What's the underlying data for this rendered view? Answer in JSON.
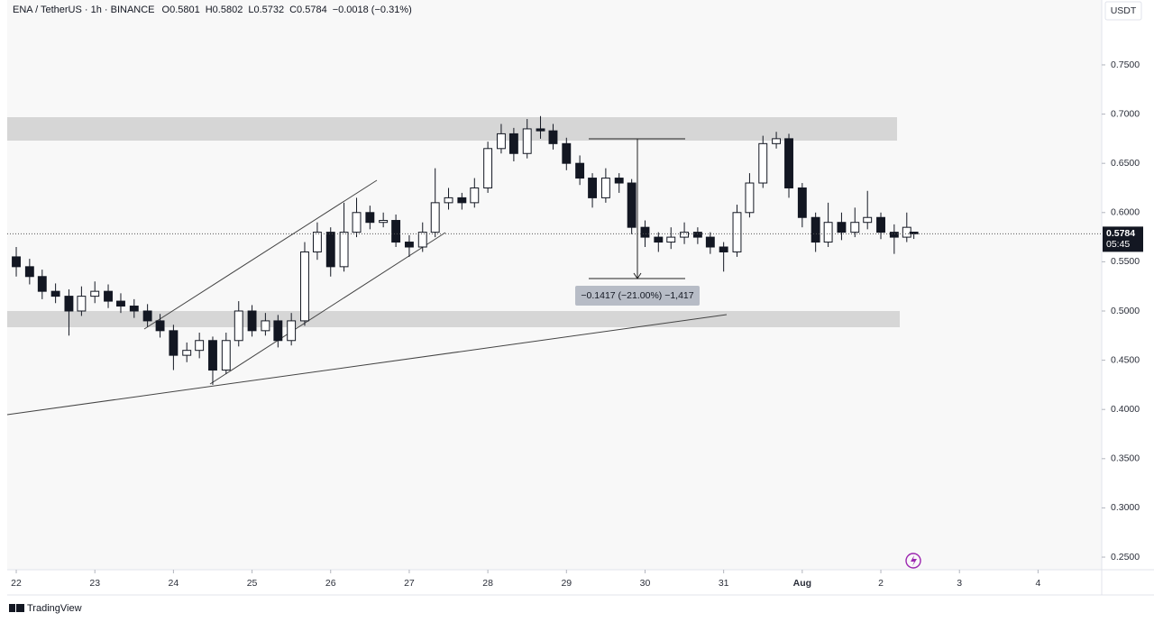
{
  "chart_data": {
    "type": "candlestick",
    "title": "ENA / TetherUS · 1h · BINANCE",
    "legend_values": [
      "O0.5801",
      "H0.5802",
      "L0.5732",
      "C0.5784",
      "−0.0018 (−0.31%)"
    ],
    "y_axis_label": "USDT",
    "x": [
      22.0,
      22.17,
      22.33,
      22.5,
      22.67,
      22.83,
      23.0,
      23.17,
      23.33,
      23.5,
      23.67,
      23.83,
      24.0,
      24.17,
      24.33,
      24.5,
      24.67,
      24.83,
      25.0,
      25.17,
      25.33,
      25.5,
      25.67,
      25.83,
      26.0,
      26.17,
      26.33,
      26.5,
      26.67,
      26.83,
      27.0,
      27.17,
      27.33,
      27.5,
      27.67,
      27.83,
      28.0,
      28.17,
      28.33,
      28.5,
      28.67,
      28.83,
      29.0,
      29.17,
      29.33,
      29.5,
      29.67,
      29.83,
      30.0,
      30.17,
      30.33,
      30.5,
      30.67,
      30.83,
      31.0,
      31.17,
      31.33,
      31.5,
      31.67,
      31.83,
      32.0,
      32.17,
      32.33,
      32.5,
      32.67,
      32.83,
      33.0,
      33.17,
      33.33,
      33.42
    ],
    "open": [
      0.555,
      0.545,
      0.535,
      0.52,
      0.515,
      0.5,
      0.515,
      0.52,
      0.51,
      0.505,
      0.5,
      0.49,
      0.48,
      0.455,
      0.46,
      0.47,
      0.44,
      0.47,
      0.5,
      0.48,
      0.49,
      0.47,
      0.49,
      0.56,
      0.58,
      0.545,
      0.58,
      0.6,
      0.59,
      0.592,
      0.57,
      0.565,
      0.58,
      0.61,
      0.615,
      0.61,
      0.625,
      0.665,
      0.68,
      0.66,
      0.685,
      0.683,
      0.67,
      0.65,
      0.635,
      0.615,
      0.635,
      0.63,
      0.585,
      0.575,
      0.57,
      0.575,
      0.58,
      0.575,
      0.565,
      0.56,
      0.6,
      0.63,
      0.67,
      0.675,
      0.625,
      0.595,
      0.57,
      0.59,
      0.58,
      0.59,
      0.595,
      0.58,
      0.575,
      0.5801
    ],
    "high": [
      0.565,
      0.553,
      0.542,
      0.528,
      0.522,
      0.525,
      0.53,
      0.527,
      0.518,
      0.512,
      0.507,
      0.497,
      0.486,
      0.468,
      0.478,
      0.474,
      0.478,
      0.51,
      0.506,
      0.498,
      0.496,
      0.498,
      0.57,
      0.59,
      0.585,
      0.61,
      0.615,
      0.607,
      0.6,
      0.598,
      0.577,
      0.59,
      0.645,
      0.625,
      0.62,
      0.635,
      0.672,
      0.69,
      0.686,
      0.695,
      0.698,
      0.69,
      0.676,
      0.658,
      0.64,
      0.645,
      0.64,
      0.634,
      0.592,
      0.58,
      0.585,
      0.59,
      0.585,
      0.58,
      0.57,
      0.608,
      0.64,
      0.678,
      0.682,
      0.68,
      0.63,
      0.6,
      0.61,
      0.6,
      0.605,
      0.622,
      0.6,
      0.588,
      0.6,
      0.5802
    ],
    "low": [
      0.535,
      0.527,
      0.512,
      0.508,
      0.475,
      0.495,
      0.508,
      0.503,
      0.498,
      0.493,
      0.484,
      0.473,
      0.44,
      0.448,
      0.452,
      0.425,
      0.436,
      0.464,
      0.474,
      0.475,
      0.463,
      0.465,
      0.485,
      0.552,
      0.535,
      0.54,
      0.575,
      0.583,
      0.585,
      0.565,
      0.555,
      0.56,
      0.575,
      0.603,
      0.603,
      0.605,
      0.62,
      0.66,
      0.652,
      0.655,
      0.675,
      0.664,
      0.643,
      0.628,
      0.605,
      0.61,
      0.62,
      0.578,
      0.565,
      0.56,
      0.563,
      0.568,
      0.568,
      0.558,
      0.54,
      0.555,
      0.595,
      0.625,
      0.665,
      0.615,
      0.585,
      0.56,
      0.565,
      0.572,
      0.575,
      0.583,
      0.573,
      0.558,
      0.57,
      0.5732
    ],
    "close": [
      0.545,
      0.535,
      0.52,
      0.515,
      0.5,
      0.515,
      0.52,
      0.51,
      0.505,
      0.5,
      0.49,
      0.48,
      0.455,
      0.46,
      0.47,
      0.44,
      0.47,
      0.5,
      0.48,
      0.49,
      0.47,
      0.49,
      0.56,
      0.58,
      0.545,
      0.58,
      0.6,
      0.59,
      0.592,
      0.57,
      0.565,
      0.58,
      0.61,
      0.615,
      0.61,
      0.625,
      0.665,
      0.68,
      0.66,
      0.685,
      0.683,
      0.67,
      0.65,
      0.635,
      0.615,
      0.635,
      0.63,
      0.585,
      0.575,
      0.57,
      0.575,
      0.58,
      0.575,
      0.565,
      0.56,
      0.6,
      0.63,
      0.67,
      0.675,
      0.625,
      0.595,
      0.57,
      0.59,
      0.58,
      0.59,
      0.595,
      0.58,
      0.575,
      0.585,
      0.5784
    ],
    "up_color": "#ffffff",
    "down_color": "#131722",
    "xlim": [
      21.885,
      35.81
    ],
    "xticks": [
      22,
      23,
      24,
      25,
      26,
      27,
      28,
      29,
      30,
      31,
      {
        "value": 32,
        "label": "Aug"
      },
      {
        "value": 33,
        "label": "2"
      },
      {
        "value": 34,
        "label": "3"
      },
      {
        "value": 35,
        "label": "4"
      }
    ],
    "ylim": [
      0.2372,
      0.8159
    ],
    "yticks": [
      {
        "value": 0.75,
        "label": "0.7500"
      },
      {
        "value": 0.7,
        "label": "0.7000"
      },
      {
        "value": 0.65,
        "label": "0.6500"
      },
      {
        "value": 0.6,
        "label": "0.6000"
      },
      {
        "value": 0.55,
        "label": "0.5500"
      },
      {
        "value": 0.5,
        "label": "0.5000"
      },
      {
        "value": 0.45,
        "label": "0.4500"
      },
      {
        "value": 0.4,
        "label": "0.4000"
      },
      {
        "value": 0.35,
        "label": "0.3500"
      },
      {
        "value": 0.3,
        "label": "0.3000"
      },
      {
        "value": 0.25,
        "label": "0.2500"
      }
    ],
    "last_price": 0.5784,
    "countdown": "05:45",
    "measure_label": "−0.1417 (−21.00%) −1,417",
    "brand": "TradingView"
  }
}
